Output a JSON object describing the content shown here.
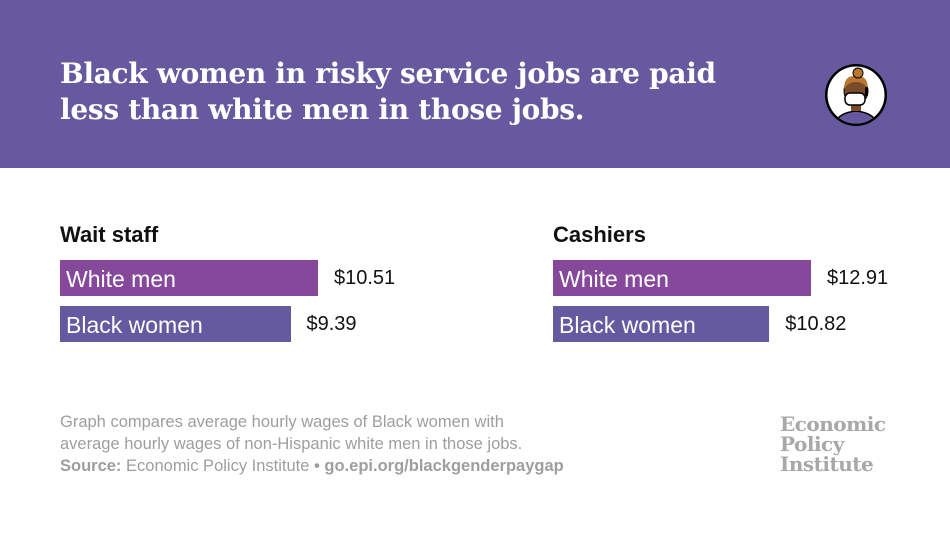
{
  "title": "Black women in risky service jobs are paid less than white men in those jobs.",
  "icon": "masked-woman-avatar-icon",
  "colors": {
    "header": "#6759a0",
    "white_men": "#86489a",
    "black_women": "#655aa0"
  },
  "chart_data": [
    {
      "type": "bar",
      "title": "Wait staff",
      "categories": [
        "White men",
        "Black women"
      ],
      "values": [
        10.51,
        9.39
      ],
      "labels": [
        "$10.51",
        "$9.39"
      ],
      "unit": "USD/hour"
    },
    {
      "type": "bar",
      "title": "Cashiers",
      "categories": [
        "White men",
        "Black women"
      ],
      "values": [
        12.91,
        10.82
      ],
      "labels": [
        "$12.91",
        "$10.82"
      ],
      "unit": "USD/hour"
    }
  ],
  "note": {
    "line1": "Graph compares average hourly wages of Black women with",
    "line2": "average hourly wages of non-Hispanic white men in those jobs.",
    "source_label": "Source:",
    "source": "Economic Policy Institute",
    "bullet": "•",
    "link": "go.epi.org/blackgenderpaygap"
  },
  "logo": {
    "line1": "Economic",
    "line2": "Policy",
    "line3": "Institute"
  }
}
